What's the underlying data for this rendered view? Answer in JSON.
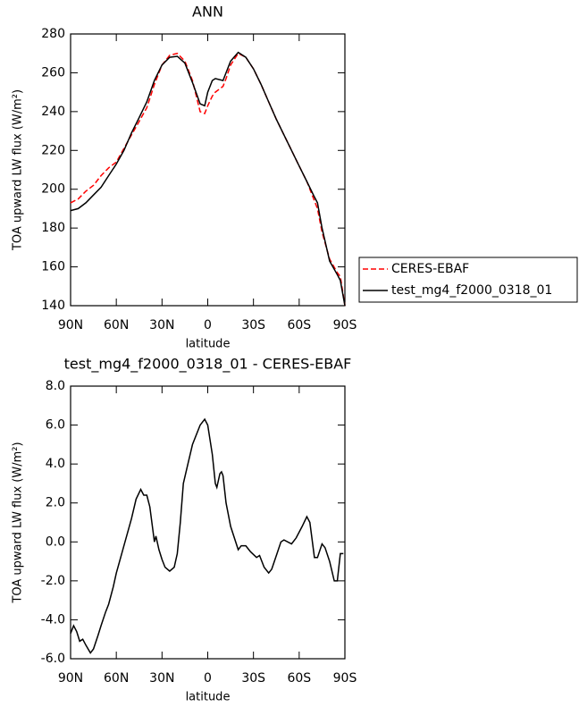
{
  "chart_data": [
    {
      "type": "line",
      "title": "ANN",
      "x_label": "latitude",
      "y_label": "TOA upward LW flux (W/m²)",
      "xlim": [
        90,
        -90
      ],
      "xticks": [
        {
          "value": 90,
          "label": "90N"
        },
        {
          "value": 60,
          "label": "60N"
        },
        {
          "value": 30,
          "label": "30N"
        },
        {
          "value": 0,
          "label": "0"
        },
        {
          "value": -30,
          "label": "30S"
        },
        {
          "value": -60,
          "label": "60S"
        },
        {
          "value": -90,
          "label": "90S"
        }
      ],
      "ylim": [
        140,
        280
      ],
      "yticks": [
        140,
        160,
        180,
        200,
        220,
        240,
        260,
        280
      ],
      "x": [
        90,
        85,
        80,
        75,
        70,
        65,
        60,
        55,
        50,
        45,
        40,
        35,
        30,
        25,
        20,
        15,
        10,
        5,
        2,
        0,
        -3,
        -5,
        -10,
        -12,
        -15,
        -20,
        -25,
        -30,
        -35,
        -40,
        -45,
        -50,
        -55,
        -60,
        -65,
        -70,
        -72,
        -75,
        -80,
        -85,
        -87,
        -90
      ],
      "legend": "right",
      "series": [
        {
          "name": "CERES-EBAF",
          "color": "#ff0000",
          "linestyle": "dashed",
          "values": [
            193,
            195,
            199,
            202,
            207,
            211,
            214,
            221,
            228,
            235,
            242,
            254,
            264,
            269,
            270,
            266,
            256,
            240,
            239,
            243,
            248,
            250,
            253,
            257,
            264,
            270,
            268,
            262,
            254,
            245,
            236,
            228,
            220,
            212,
            204,
            194,
            190,
            178,
            164,
            157,
            155,
            140
          ]
        },
        {
          "name": "test_mg4_f2000_0318_01",
          "color": "#000000",
          "linestyle": "solid",
          "values": [
            189,
            190,
            193,
            197,
            201,
            207,
            213,
            220,
            229,
            237,
            245,
            256,
            264,
            268,
            268.5,
            265,
            255,
            244,
            243,
            250,
            256,
            257,
            256,
            260,
            266,
            270.5,
            268,
            262,
            254,
            245,
            236,
            228,
            220,
            212,
            204,
            196,
            193,
            180,
            163,
            156,
            153,
            140
          ]
        }
      ]
    },
    {
      "type": "line",
      "title": "test_mg4_f2000_0318_01 - CERES-EBAF",
      "x_label": "latitude",
      "y_label": "TOA upward LW flux (W/m²)",
      "xlim": [
        90,
        -90
      ],
      "xticks": [
        {
          "value": 90,
          "label": "90N"
        },
        {
          "value": 60,
          "label": "60N"
        },
        {
          "value": 30,
          "label": "30N"
        },
        {
          "value": 0,
          "label": "0"
        },
        {
          "value": -30,
          "label": "30S"
        },
        {
          "value": -60,
          "label": "60S"
        },
        {
          "value": -90,
          "label": "90S"
        }
      ],
      "ylim": [
        -6,
        8
      ],
      "yticks": [
        {
          "value": -6,
          "label": "-6.0"
        },
        {
          "value": -4,
          "label": "-4.0"
        },
        {
          "value": -2,
          "label": "-2.0"
        },
        {
          "value": 0,
          "label": "0.0"
        },
        {
          "value": 2,
          "label": "2.0"
        },
        {
          "value": 4,
          "label": "4.0"
        },
        {
          "value": 6,
          "label": "6.0"
        },
        {
          "value": 8,
          "label": "8.0"
        }
      ],
      "x": [
        90,
        88,
        86,
        84,
        82,
        80,
        77,
        75,
        72,
        70,
        67,
        65,
        62,
        60,
        55,
        50,
        47,
        44,
        42,
        40,
        38,
        36,
        35,
        34,
        32,
        30,
        28,
        25,
        22,
        20,
        18,
        16,
        13,
        10,
        5,
        2,
        0,
        -3,
        -5,
        -6,
        -8,
        -9,
        -10,
        -12,
        -15,
        -20,
        -22,
        -25,
        -28,
        -32,
        -34,
        -37,
        -40,
        -42,
        -45,
        -48,
        -50,
        -55,
        -58,
        -62,
        -65,
        -67,
        -70,
        -72,
        -75,
        -77,
        -80,
        -83,
        -85,
        -87,
        -89
      ],
      "series": [
        {
          "color": "#000000",
          "linestyle": "solid",
          "values": [
            -4.7,
            -4.3,
            -4.6,
            -5.1,
            -5.0,
            -5.3,
            -5.7,
            -5.5,
            -4.8,
            -4.3,
            -3.6,
            -3.2,
            -2.3,
            -1.6,
            -0.2,
            1.2,
            2.2,
            2.7,
            2.4,
            2.4,
            1.8,
            0.6,
            0,
            0.3,
            -0.4,
            -0.9,
            -1.3,
            -1.5,
            -1.3,
            -0.6,
            1.0,
            3.0,
            4.0,
            5.0,
            6.0,
            6.3,
            6.0,
            4.5,
            3.0,
            2.8,
            3.5,
            3.6,
            3.4,
            2.0,
            0.8,
            -0.4,
            -0.2,
            -0.2,
            -0.5,
            -0.8,
            -0.7,
            -1.3,
            -1.6,
            -1.4,
            -0.7,
            0,
            0.1,
            -0.1,
            0.2,
            0.8,
            1.3,
            1.0,
            -0.8,
            -0.8,
            -0.1,
            -0.3,
            -1.0,
            -2.0,
            -2.0,
            -0.6,
            -0.6
          ]
        }
      ]
    }
  ]
}
